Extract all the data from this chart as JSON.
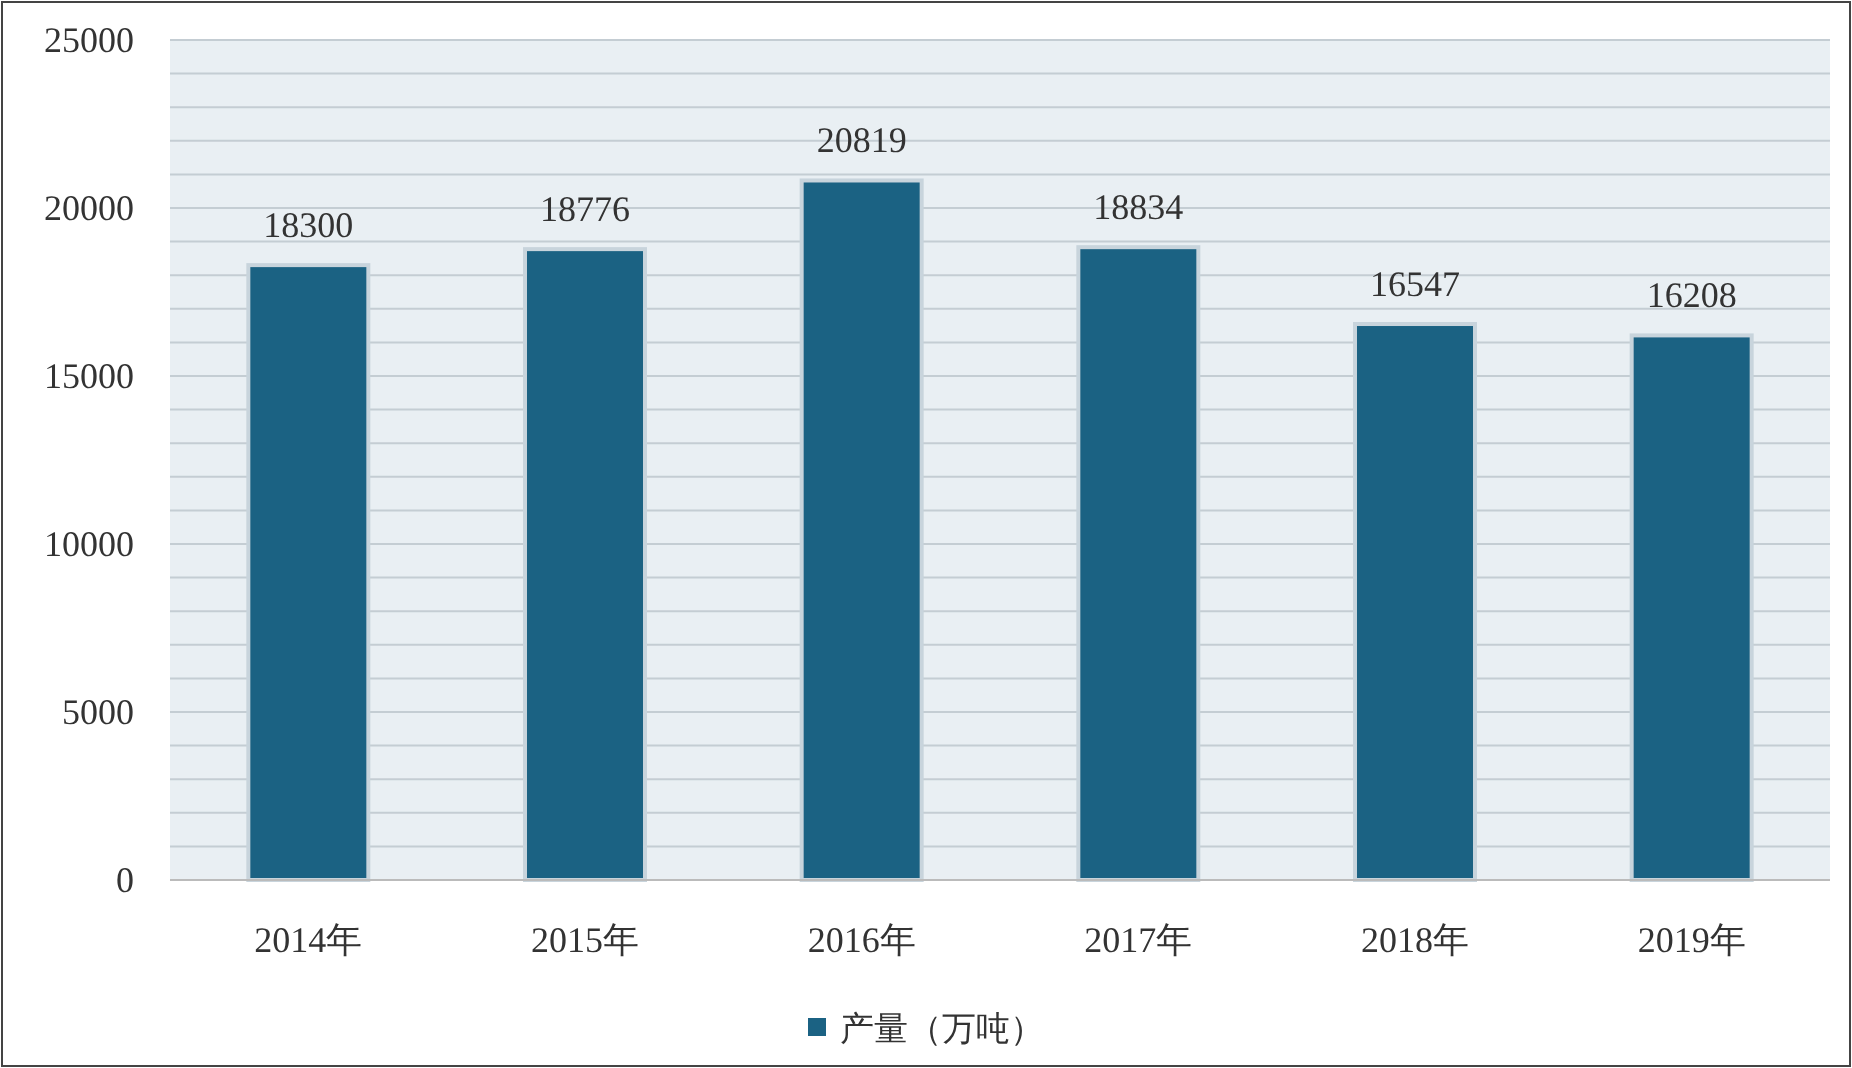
{
  "chart_data": {
    "type": "bar",
    "categories": [
      "2014年",
      "2015年",
      "2016年",
      "2017年",
      "2018年",
      "2019年"
    ],
    "series": [
      {
        "name": "产量（万吨）",
        "color": "#1b6283",
        "values": [
          18300,
          18776,
          20819,
          18834,
          16547,
          16208
        ]
      }
    ],
    "ylim": [
      0,
      25000
    ],
    "yticks": [
      0,
      {
        "value": 1000,
        "label": null
      },
      {
        "value": 2000,
        "label": null
      },
      {
        "value": 3000,
        "label": null
      },
      {
        "value": 4000,
        "label": null
      },
      5000,
      {
        "value": 6000,
        "label": null
      },
      {
        "value": 7000,
        "label": null
      },
      {
        "value": 8000,
        "label": null
      },
      {
        "value": 9000,
        "label": null
      },
      10000,
      {
        "value": 11000,
        "label": null
      },
      {
        "value": 12000,
        "label": null
      },
      {
        "value": 13000,
        "label": null
      },
      {
        "value": 14000,
        "label": null
      },
      15000,
      {
        "value": 16000,
        "label": null
      },
      {
        "value": 17000,
        "label": null
      },
      {
        "value": 18000,
        "label": null
      },
      {
        "value": 19000,
        "label": null
      },
      20000,
      {
        "value": 21000,
        "label": null
      },
      {
        "value": 22000,
        "label": null
      },
      {
        "value": 23000,
        "label": null
      },
      {
        "value": 24000,
        "label": null
      },
      25000
    ],
    "grid": "y",
    "data_labels": true,
    "legend": "bottom"
  }
}
